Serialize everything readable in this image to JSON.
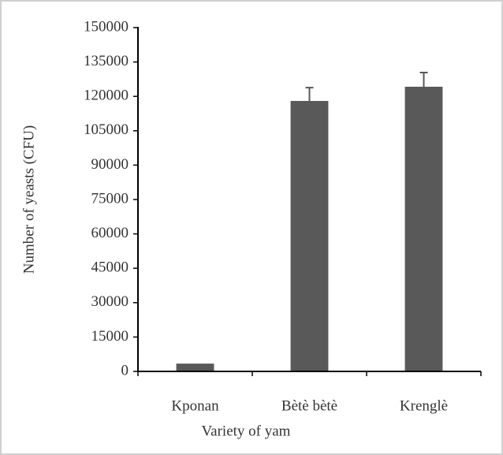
{
  "chart_data": {
    "type": "bar",
    "xlabel": "Variety of yam",
    "ylabel": "Number of yeasts (CFU)",
    "categories": [
      "Kponan",
      "Bètè bètè",
      "Krenglè"
    ],
    "values": [
      3400,
      118000,
      124200
    ],
    "errors": [
      0,
      5800,
      6200
    ],
    "color": "#595959",
    "ylim": [
      0,
      150000
    ],
    "yticks": [
      0,
      15000,
      30000,
      45000,
      60000,
      75000,
      90000,
      105000,
      120000,
      135000,
      150000
    ],
    "grid": false
  }
}
